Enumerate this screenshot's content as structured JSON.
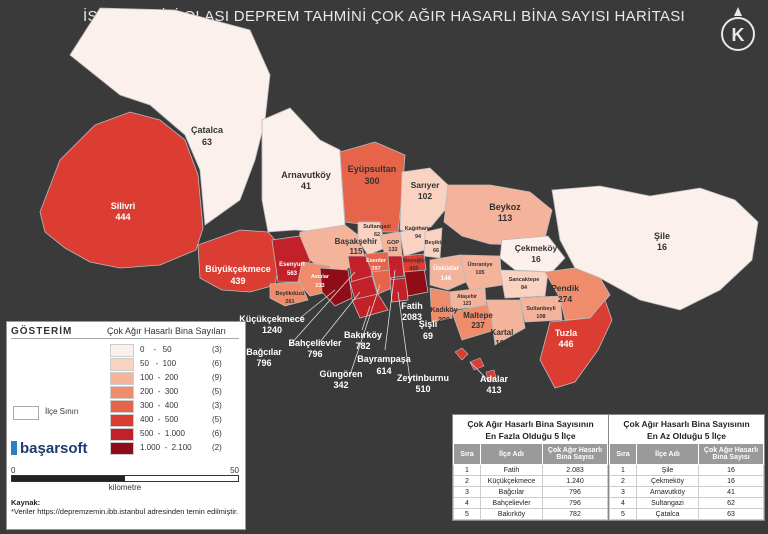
{
  "title": "İSTANBUL İLİ OLASI DEPREM TAHMİNİ ÇOK AĞIR HASARLI BİNA SAYISI HARİTASI",
  "compass_letter": "K",
  "colors": {
    "background": "#3a3a3a",
    "class_0_50": "#fbf0ec",
    "class_50_100": "#f9d2c2",
    "class_100_200": "#f4b39b",
    "class_200_300": "#ef8c6c",
    "class_300_400": "#e6644a",
    "class_400_500": "#db3d32",
    "class_500_1000": "#c2212a",
    "class_1000_2100": "#8f0d17"
  },
  "districts": [
    {
      "name": "Çatalca",
      "value": "63"
    },
    {
      "name": "Silivri",
      "value": "444"
    },
    {
      "name": "Arnavutköy",
      "value": "41"
    },
    {
      "name": "Eyüpsultan",
      "value": "300"
    },
    {
      "name": "Sarıyer",
      "value": "102"
    },
    {
      "name": "Beykoz",
      "value": "113"
    },
    {
      "name": "Şile",
      "value": "16"
    },
    {
      "name": "Çekmeköy",
      "value": "16"
    },
    {
      "name": "Başakşehir",
      "value": "115"
    },
    {
      "name": "Sultangazi",
      "value": "62"
    },
    {
      "name": "GOP",
      "value": "132"
    },
    {
      "name": "Kağıthane",
      "value": "94"
    },
    {
      "name": "Beşiktaş",
      "value": "66"
    },
    {
      "name": "Büyükçekmece",
      "value": "439"
    },
    {
      "name": "Esenyurt",
      "value": "563"
    },
    {
      "name": "Avcılar",
      "value": "233"
    },
    {
      "name": "Beylikdüzü",
      "value": "261"
    },
    {
      "name": "Esenler",
      "value": "397"
    },
    {
      "name": "Beyoğlu",
      "value": "450"
    },
    {
      "name": "Üsküdar",
      "value": "146"
    },
    {
      "name": "Ümraniye",
      "value": "105"
    },
    {
      "name": "Sancaktepe",
      "value": "84"
    },
    {
      "name": "Sultanbeyli",
      "value": "108"
    },
    {
      "name": "Pendik",
      "value": "274"
    },
    {
      "name": "Ataşehir",
      "value": "123"
    },
    {
      "name": "Kadıköy",
      "value": "209"
    },
    {
      "name": "Maltepe",
      "value": "237"
    },
    {
      "name": "Kartal",
      "value": "195"
    },
    {
      "name": "Tuzla",
      "value": "446"
    },
    {
      "name": "Fatih",
      "value": "2083"
    },
    {
      "name": "Şişli",
      "value": "69"
    },
    {
      "name": "Küçükçekmece",
      "value": "1240"
    },
    {
      "name": "Bağcılar",
      "value": "796"
    },
    {
      "name": "Bahçelievler",
      "value": "796"
    },
    {
      "name": "Güngören",
      "value": "342"
    },
    {
      "name": "Bakırköy",
      "value": "782"
    },
    {
      "name": "Bayrampaşa",
      "value": "614"
    },
    {
      "name": "Zeytinburnu",
      "value": "510"
    },
    {
      "name": "Adalar",
      "value": "413"
    }
  ],
  "legend": {
    "heading": "GÖSTERİM",
    "subheading": "Çok Ağır Hasarlı Bina Sayıları",
    "classes": [
      {
        "range": "0    -   50",
        "count": "(3)",
        "color": "#fbf0ec"
      },
      {
        "range": "50   -  100",
        "count": "(6)",
        "color": "#f9d2c2"
      },
      {
        "range": "100  -  200",
        "count": "(9)",
        "color": "#f4b39b"
      },
      {
        "range": "200  -  300",
        "count": "(5)",
        "color": "#ef8c6c"
      },
      {
        "range": "300  -  400",
        "count": "(3)",
        "color": "#e6644a"
      },
      {
        "range": "400  -  500",
        "count": "(5)",
        "color": "#db3d32"
      },
      {
        "range": "500  -  1.000",
        "count": "(6)",
        "color": "#c2212a"
      },
      {
        "range": "1.000  -  2.100",
        "count": "(2)",
        "color": "#8f0d17"
      }
    ],
    "district_boundary": "İlçe Sınırı",
    "brand": "başarsoft",
    "scale_min": "0",
    "scale_max": "50",
    "scale_unit": "kilometre",
    "source_label": "Kaynak:",
    "source_text": "*Veriler https://depremzemin.ibb.istanbul adresinden temin edilmiştir."
  },
  "table_top": {
    "title_line1": "Çok Ağır Hasarlı Bina Sayısının",
    "title_line2": "En Fazla Olduğu 5 İlçe",
    "headers": [
      "Sıra",
      "İlçe Adı",
      "Çok Ağır Hasarlı Bina Sayısı"
    ],
    "rows": [
      [
        "1",
        "Fatih",
        "2.083"
      ],
      [
        "2",
        "Küçükçekmece",
        "1.240"
      ],
      [
        "3",
        "Bağcılar",
        "796"
      ],
      [
        "4",
        "Bahçelievler",
        "796"
      ],
      [
        "5",
        "Bakırköy",
        "782"
      ]
    ]
  },
  "table_bottom": {
    "title_line1": "Çok Ağır Hasarlı Bina Sayısının",
    "title_line2": "En Az Olduğu 5 İlçe",
    "headers": [
      "Sıra",
      "İlçe Adı",
      "Çok Ağır Hasarlı Bina Sayısı"
    ],
    "rows": [
      [
        "1",
        "Şile",
        "16"
      ],
      [
        "2",
        "Çekmeköy",
        "16"
      ],
      [
        "3",
        "Arnavutköy",
        "41"
      ],
      [
        "4",
        "Sultangazi",
        "62"
      ],
      [
        "5",
        "Çatalca",
        "63"
      ]
    ]
  }
}
